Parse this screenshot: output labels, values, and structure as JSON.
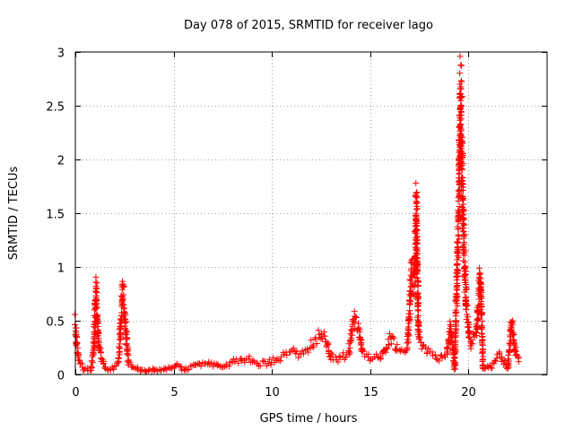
{
  "chart_data": {
    "type": "scatter",
    "title": "Day 078 of 2015, SRMTID for receiver lago",
    "xlabel": "GPS time / hours",
    "ylabel": "SRMTID / TECUs",
    "xlim": [
      0,
      24
    ],
    "ylim": [
      0,
      3
    ],
    "xticks": [
      0,
      5,
      10,
      15,
      20
    ],
    "xtick_labels": [
      "0",
      "5",
      "10",
      "15",
      "20"
    ],
    "yticks": [
      0,
      0.5,
      1,
      1.5,
      2,
      2.5,
      3
    ],
    "ytick_labels": [
      "0",
      "0.5",
      "1",
      "1.5",
      "2",
      "2.5",
      "3"
    ],
    "grid": true,
    "marker": "+",
    "series": [
      {
        "name": "SRMTID",
        "color": "#ff0000",
        "profile": [
          [
            0.0,
            0.48
          ],
          [
            0.08,
            0.25
          ],
          [
            0.2,
            0.12
          ],
          [
            0.4,
            0.06
          ],
          [
            0.8,
            0.04
          ],
          [
            0.95,
            0.25
          ],
          [
            1.05,
            0.82
          ],
          [
            1.15,
            0.4
          ],
          [
            1.25,
            0.2
          ],
          [
            1.5,
            0.06
          ],
          [
            1.8,
            0.04
          ],
          [
            2.2,
            0.1
          ],
          [
            2.4,
            0.8
          ],
          [
            2.55,
            0.45
          ],
          [
            2.7,
            0.1
          ],
          [
            3.0,
            0.05
          ],
          [
            3.5,
            0.03
          ],
          [
            4.0,
            0.05
          ],
          [
            4.4,
            0.03
          ],
          [
            4.8,
            0.06
          ],
          [
            5.2,
            0.09
          ],
          [
            5.5,
            0.05
          ],
          [
            6.0,
            0.08
          ],
          [
            6.5,
            0.11
          ],
          [
            7.0,
            0.09
          ],
          [
            7.5,
            0.07
          ],
          [
            8.0,
            0.12
          ],
          [
            8.5,
            0.14
          ],
          [
            9.0,
            0.13
          ],
          [
            9.5,
            0.1
          ],
          [
            10.0,
            0.12
          ],
          [
            10.5,
            0.16
          ],
          [
            11.0,
            0.22
          ],
          [
            11.5,
            0.2
          ],
          [
            12.0,
            0.27
          ],
          [
            12.5,
            0.4
          ],
          [
            12.8,
            0.3
          ],
          [
            13.0,
            0.16
          ],
          [
            13.5,
            0.15
          ],
          [
            13.9,
            0.2
          ],
          [
            14.2,
            0.52
          ],
          [
            14.4,
            0.45
          ],
          [
            14.6,
            0.2
          ],
          [
            15.0,
            0.16
          ],
          [
            15.5,
            0.15
          ],
          [
            16.0,
            0.35
          ],
          [
            16.4,
            0.22
          ],
          [
            16.9,
            0.25
          ],
          [
            17.1,
            0.95
          ],
          [
            17.25,
            0.85
          ],
          [
            17.35,
            1.55
          ],
          [
            17.45,
            0.4
          ],
          [
            17.6,
            0.26
          ],
          [
            18.0,
            0.22
          ],
          [
            18.5,
            0.14
          ],
          [
            18.9,
            0.2
          ],
          [
            19.1,
            0.45
          ],
          [
            19.3,
            0.06
          ],
          [
            19.5,
            1.5
          ],
          [
            19.6,
            2.58
          ],
          [
            19.75,
            1.3
          ],
          [
            19.9,
            0.6
          ],
          [
            20.1,
            0.28
          ],
          [
            20.4,
            0.4
          ],
          [
            20.6,
            0.92
          ],
          [
            20.75,
            0.06
          ],
          [
            21.2,
            0.08
          ],
          [
            21.6,
            0.18
          ],
          [
            22.0,
            0.06
          ],
          [
            22.2,
            0.48
          ],
          [
            22.4,
            0.2
          ],
          [
            22.6,
            0.12
          ]
        ]
      }
    ]
  }
}
